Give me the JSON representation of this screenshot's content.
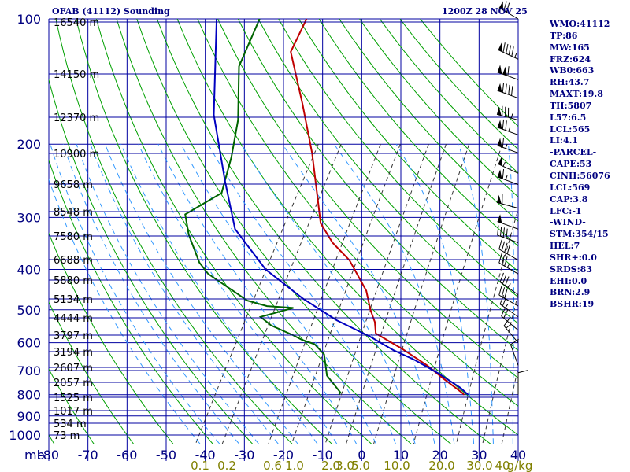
{
  "header": {
    "title": "OFAB (41112) Sounding",
    "time": "1200Z 28 NOV 25"
  },
  "stats": [
    "WMO:41112",
    "TP:86",
    "MW:165",
    "FRZ:624",
    "WB0:663",
    "RH:43.7",
    "MAXT:19.8",
    "TH:5807",
    "L57:6.5",
    "LCL:565",
    "LI:4.1",
    "-PARCEL-",
    "CAPE:53",
    "CINH:56076",
    "LCL:569",
    "CAP:3.8",
    "LFC:-1",
    "-WIND-",
    "STM:354/15",
    "HEL:7",
    "SHR+:0.0",
    "SRDS:83",
    "EHI:0.0",
    "BRN:2.9",
    "BSHR:19"
  ],
  "colors": {
    "grid": "#0000a0",
    "dry_adiabat": "#00a000",
    "mixing_ratio": "#333333",
    "moist_adiabat": "#3399ff",
    "temperature": "#c00000",
    "dewpoint": "#006400",
    "parcel": "#0000c0",
    "axis_label": "#000080",
    "mix_label": "#808000"
  },
  "chart_data": {
    "type": "line",
    "title": "OFAB (41112) Sounding",
    "subtitle": "1200Z 28 NOV 25",
    "xlabel": "",
    "ylabel": "mb",
    "xlim": [
      -80,
      40
    ],
    "ylim": [
      1000,
      100
    ],
    "y_scale": "log",
    "x_ticks": [
      "-80",
      "-70",
      "-60",
      "-50",
      "-40",
      "-30",
      "-20",
      "-10",
      "0",
      "10",
      "20",
      "30",
      "40"
    ],
    "pressure_levels": [
      100,
      200,
      300,
      400,
      500,
      600,
      700,
      800,
      900,
      1000
    ],
    "pressure_tick_labels": [
      "100",
      "200",
      "300",
      "400",
      "500",
      "600",
      "700",
      "800",
      "900",
      "1000"
    ],
    "height_labels": [
      "16540 m",
      "14150 m",
      "12370 m",
      "10900 m",
      "9658 m",
      "8548 m",
      "7580 m",
      "6688 m",
      "5880 m",
      "5134 m",
      "4444 m",
      "3797 m",
      "3194 m",
      "2607 m",
      "2057 m",
      "1525 m",
      "1017 m",
      "534 m",
      "73 m"
    ],
    "mixing_ratio_labels": [
      "0.1",
      "0.2",
      "0.6",
      "1.0",
      "2.0",
      "3.0",
      "5.0",
      "10.0",
      "20.0",
      "30.0",
      "40",
      "g/kg"
    ],
    "series": [
      {
        "name": "Temperature",
        "points": [
          [
            -78,
            100
          ],
          [
            -77,
            120
          ],
          [
            -66,
            160
          ],
          [
            -56,
            210
          ],
          [
            -47,
            275
          ],
          [
            -43,
            310
          ],
          [
            -37,
            345
          ],
          [
            -30,
            380
          ],
          [
            -21,
            450
          ],
          [
            -17,
            500
          ],
          [
            -14,
            535
          ],
          [
            -12,
            570
          ],
          [
            -3,
            620
          ],
          [
            6,
            680
          ],
          [
            12,
            730
          ],
          [
            19,
            790
          ],
          [
            20,
            800
          ]
        ]
      },
      {
        "name": "Dewpoint",
        "points": [
          [
            -90,
            100
          ],
          [
            -88,
            130
          ],
          [
            -80,
            175
          ],
          [
            -76,
            215
          ],
          [
            -73,
            262
          ],
          [
            -79,
            295
          ],
          [
            -75,
            330
          ],
          [
            -68,
            385
          ],
          [
            -64,
            410
          ],
          [
            -53,
            460
          ],
          [
            -50,
            475
          ],
          [
            -44,
            490
          ],
          [
            -37,
            495
          ],
          [
            -44,
            520
          ],
          [
            -40,
            545
          ],
          [
            -33,
            575
          ],
          [
            -30,
            590
          ],
          [
            -26,
            605
          ],
          [
            -22,
            640
          ],
          [
            -18,
            720
          ],
          [
            -12,
            790
          ],
          [
            -12,
            800
          ]
        ]
      },
      {
        "name": "Parcel",
        "points": [
          [
            -101,
            100
          ],
          [
            -87,
            170
          ],
          [
            -74,
            245
          ],
          [
            -64,
            320
          ],
          [
            -50,
            400
          ],
          [
            -36,
            470
          ],
          [
            -24,
            530
          ],
          [
            -13,
            580
          ],
          [
            -5,
            625
          ],
          [
            2,
            660
          ],
          [
            10,
            710
          ],
          [
            18,
            770
          ],
          [
            21,
            800
          ]
        ]
      }
    ],
    "wind_barbs": [
      {
        "p": 100,
        "dir": 300,
        "spd": 70
      },
      {
        "p": 125,
        "dir": 295,
        "spd": 95
      },
      {
        "p": 140,
        "dir": 290,
        "spd": 110
      },
      {
        "p": 155,
        "dir": 290,
        "spd": 90
      },
      {
        "p": 175,
        "dir": 285,
        "spd": 85
      },
      {
        "p": 190,
        "dir": 290,
        "spd": 75
      },
      {
        "p": 210,
        "dir": 290,
        "spd": 65
      },
      {
        "p": 235,
        "dir": 295,
        "spd": 55
      },
      {
        "p": 250,
        "dir": 290,
        "spd": 65
      },
      {
        "p": 285,
        "dir": 285,
        "spd": 60
      },
      {
        "p": 320,
        "dir": 290,
        "spd": 50
      },
      {
        "p": 345,
        "dir": 290,
        "spd": 45
      },
      {
        "p": 380,
        "dir": 300,
        "spd": 40
      },
      {
        "p": 410,
        "dir": 300,
        "spd": 35
      },
      {
        "p": 460,
        "dir": 305,
        "spd": 35
      },
      {
        "p": 490,
        "dir": 300,
        "spd": 30
      },
      {
        "p": 520,
        "dir": 305,
        "spd": 25
      },
      {
        "p": 560,
        "dir": 310,
        "spd": 20
      },
      {
        "p": 600,
        "dir": 320,
        "spd": 15
      },
      {
        "p": 680,
        "dir": 340,
        "spd": 10
      },
      {
        "p": 800,
        "dir": 0,
        "spd": 10
      }
    ],
    "grid": true,
    "legend": "none"
  }
}
